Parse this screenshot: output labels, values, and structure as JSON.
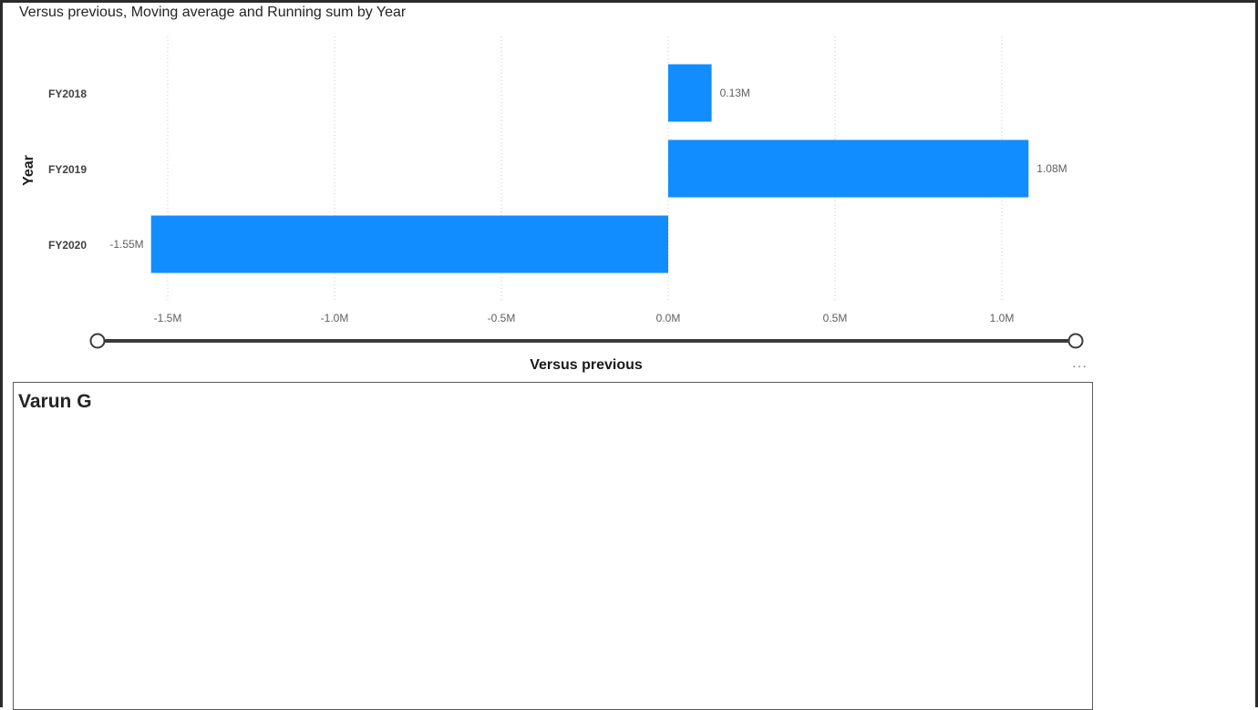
{
  "visual": {
    "title": "Versus previous, Moving average and Running sum by Year",
    "more_icon": "more-options-icon",
    "more_glyph": "···"
  },
  "chart_data": {
    "type": "bar",
    "orientation": "horizontal",
    "title": "Versus previous, Moving average and Running sum by Year",
    "xlabel": "Versus previous",
    "ylabel": "Year",
    "categories": [
      "FY2018",
      "FY2019",
      "FY2020"
    ],
    "values": [
      130000,
      1080000,
      -1550000
    ],
    "data_labels": [
      "0.13M",
      "1.08M",
      "-1.55M"
    ],
    "xlim": [
      -1600000,
      1150000
    ],
    "x_ticks": [
      -1500000,
      -1000000,
      -500000,
      0,
      500000,
      1000000
    ],
    "x_tick_labels": [
      "-1.5M",
      "-1.0M",
      "-0.5M",
      "0.0M",
      "0.5M",
      "1.0M"
    ],
    "grid": "vertical dotted",
    "bar_color": "#118DFF",
    "zoom_slider": {
      "min": 0,
      "max": 1
    }
  },
  "card": {
    "title": "Varun G"
  }
}
